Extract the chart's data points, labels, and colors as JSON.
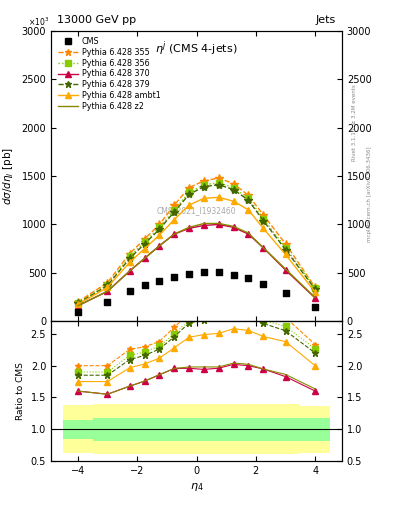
{
  "title_top": "13000 GeV pp",
  "title_right": "Jets",
  "plot_title": "$\\eta^j$ (CMS 4-jets)",
  "xlabel": "$\\eta_4$",
  "ylabel_main": "$d\\sigma/d\\eta_j$ [pb]",
  "ylabel_ratio": "Ratio to CMS",
  "watermark": "CMS_2021_I1932460",
  "rivet_label": "Rivet 3.1.10, ≥ 3.2M events",
  "mcplots_label": "mcplots.cern.ch [arXiv:1306.3436]",
  "eta_centers": [
    -4.0,
    -3.0,
    -2.25,
    -1.75,
    -1.25,
    -0.75,
    -0.25,
    0.25,
    0.75,
    1.25,
    1.75,
    2.25,
    3.0,
    4.0
  ],
  "cms_data": [
    100,
    200,
    310,
    370,
    420,
    460,
    490,
    510,
    510,
    480,
    450,
    390,
    290,
    150
  ],
  "series": [
    {
      "label": "Pythia 6.428 355",
      "color": "#ff8800",
      "linestyle": "--",
      "marker": "*",
      "markersize": 6,
      "values": [
        200,
        400,
        700,
        850,
        1000,
        1200,
        1380,
        1450,
        1480,
        1420,
        1300,
        1100,
        800,
        350
      ]
    },
    {
      "label": "Pythia 6.428 356",
      "color": "#88cc00",
      "linestyle": ":",
      "marker": "s",
      "markersize": 5,
      "values": [
        190,
        380,
        670,
        820,
        970,
        1150,
        1330,
        1410,
        1430,
        1380,
        1270,
        1060,
        760,
        340
      ]
    },
    {
      "label": "Pythia 6.428 370",
      "color": "#cc0044",
      "linestyle": "-",
      "marker": "^",
      "markersize": 5,
      "values": [
        160,
        310,
        520,
        650,
        780,
        900,
        960,
        990,
        1000,
        970,
        900,
        760,
        530,
        240
      ]
    },
    {
      "label": "Pythia 6.428 379",
      "color": "#446600",
      "linestyle": "--",
      "marker": "*",
      "markersize": 6,
      "values": [
        185,
        370,
        650,
        800,
        950,
        1130,
        1310,
        1390,
        1410,
        1360,
        1250,
        1040,
        740,
        330
      ]
    },
    {
      "label": "Pythia 6.428 ambt1",
      "color": "#ffaa00",
      "linestyle": "-",
      "marker": "^",
      "markersize": 5,
      "values": [
        175,
        350,
        610,
        750,
        890,
        1050,
        1200,
        1270,
        1280,
        1240,
        1150,
        960,
        690,
        300
      ]
    },
    {
      "label": "Pythia 6.428 z2",
      "color": "#888800",
      "linestyle": "-",
      "marker": "",
      "markersize": 0,
      "values": [
        160,
        310,
        520,
        650,
        780,
        900,
        970,
        1010,
        1010,
        980,
        910,
        760,
        540,
        245
      ]
    }
  ],
  "eta_bins": [
    -4.5,
    -3.5,
    -2.5,
    -2.0,
    -1.5,
    -1.0,
    -0.5,
    0.0,
    0.5,
    1.0,
    1.5,
    2.0,
    2.5,
    3.5,
    4.5
  ],
  "green_bands": [
    [
      0.85,
      1.15
    ],
    [
      0.82,
      1.18
    ],
    [
      0.82,
      1.18
    ],
    [
      0.82,
      1.18
    ],
    [
      0.82,
      1.18
    ],
    [
      0.82,
      1.18
    ],
    [
      0.82,
      1.18
    ],
    [
      0.82,
      1.18
    ],
    [
      0.82,
      1.18
    ],
    [
      0.82,
      1.18
    ],
    [
      0.82,
      1.18
    ],
    [
      0.82,
      1.18
    ],
    [
      0.82,
      1.18
    ],
    [
      0.82,
      1.18
    ]
  ],
  "yellow_bands": [
    [
      0.62,
      1.38
    ],
    [
      0.6,
      1.4
    ],
    [
      0.6,
      1.4
    ],
    [
      0.6,
      1.4
    ],
    [
      0.6,
      1.4
    ],
    [
      0.6,
      1.4
    ],
    [
      0.6,
      1.4
    ],
    [
      0.6,
      1.4
    ],
    [
      0.6,
      1.4
    ],
    [
      0.6,
      1.4
    ],
    [
      0.6,
      1.4
    ],
    [
      0.6,
      1.4
    ],
    [
      0.6,
      1.4
    ],
    [
      0.63,
      1.37
    ]
  ],
  "background_color": "#ffffff",
  "xlim": [
    -4.9,
    4.9
  ],
  "ylim_main": [
    0,
    3000
  ],
  "ylim_ratio": [
    0.5,
    2.7
  ],
  "yticks_main": [
    0,
    500,
    1000,
    1500,
    2000,
    2500,
    3000
  ],
  "yticks_ratio": [
    0.5,
    1.0,
    1.5,
    2.0,
    2.5
  ]
}
